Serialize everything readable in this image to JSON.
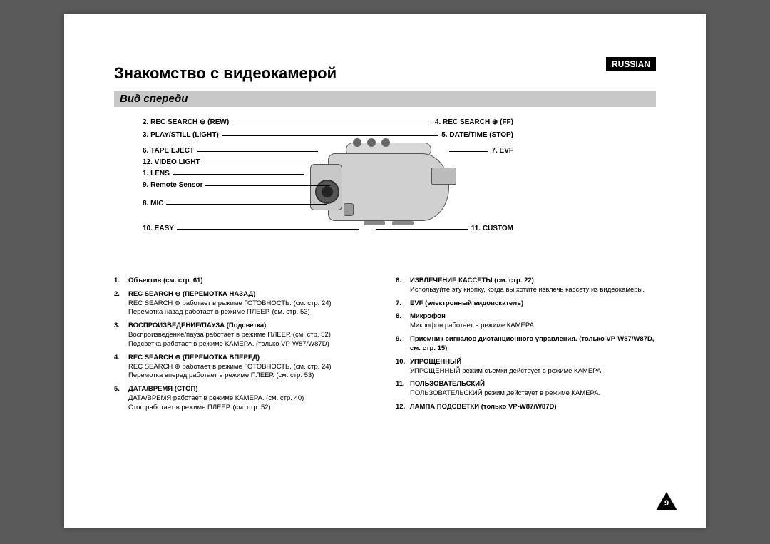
{
  "langBadge": "RUSSIAN",
  "title": "Знакомство с видеокамерой",
  "subtitle": "Вид спереди",
  "pageNumber": "9",
  "colors": {
    "pageBg": "#5a5a5a",
    "paper": "#ffffff",
    "subtitleBg": "#c8c8c8",
    "badgeBg": "#000000",
    "badgeFg": "#ffffff"
  },
  "calloutsLeft": [
    "2. REC SEARCH ⊖ (REW)",
    "3. PLAY/STILL (LIGHT)",
    "6. TAPE EJECT",
    "12. VIDEO LIGHT",
    "1. LENS",
    "9. Remote Sensor",
    "8. MIC",
    "10. EASY"
  ],
  "calloutsRight": [
    "4. REC SEARCH ⊕ (FF)",
    "5. DATE/TIME (STOP)",
    "7. EVF",
    "11. CUSTOM"
  ],
  "descLeft": [
    {
      "n": "1.",
      "head": "Объектив (см. стр. 61)",
      "body": ""
    },
    {
      "n": "2.",
      "head": "REC SEARCH ⊖ (ПЕРЕМОТКА НАЗАД)",
      "body": "REC SEARCH ⊖ работает в режиме ГОТОВНОСТЬ. (см. стр. 24)\nПеремотка назад работает в режиме ПЛЕЕР. (см. стр. 53)"
    },
    {
      "n": "3.",
      "head": "ВОСПРОИЗВЕДЕНИЕ/ПАУЗА (Подсветка)",
      "body": "Воспроизведение/пауза работает в режиме ПЛЕЕР. (см. стр. 52)\nПодсветка работает в режиме КАМЕРА. (только VP-W87/W87D)"
    },
    {
      "n": "4.",
      "head": "REC SEARCH ⊕ (ПЕРЕМОТКА ВПЕРЕД)",
      "body": "REC SEARCH ⊕ работает в режиме ГОТОВНОСТЬ. (см. стр. 24)\nПеремотка вперед работает в режиме ПЛЕЕР. (см. стр. 53)"
    },
    {
      "n": "5.",
      "head": "ДАТА/ВРЕМЯ (СТОП)",
      "body": "ДАТА/ВРЕМЯ работает в режиме КАМЕРА. (см. стр. 40)\nСтоп работает в режиме ПЛЕЕР. (см. стр. 52)"
    }
  ],
  "descRight": [
    {
      "n": "6.",
      "head": "ИЗВЛЕЧЕНИЕ КАССЕТЫ (см. стр. 22)",
      "body": "Используйте эту кнопку, когда вы хотите извлечь кассету из видеокамеры."
    },
    {
      "n": "7.",
      "head": "EVF (электронный видоискатель)",
      "body": ""
    },
    {
      "n": "8.",
      "head": "Микрофон",
      "body": "Микрофон работает в режиме КАМЕРА."
    },
    {
      "n": "9.",
      "head": "Приемник сигналов дистанционного управления. (только VP-W87/W87D, см. стр. 15)",
      "body": ""
    },
    {
      "n": "10.",
      "head": "УПРОЩЕННЫЙ",
      "body": "УПРОЩЕННЫЙ режим съемки действует в режиме КАМЕРА."
    },
    {
      "n": "11.",
      "head": "ПОЛЬЗОВАТЕЛЬСКИЙ",
      "body": "ПОЛЬЗОВАТЕЛЬСКИЙ режим действует в режиме КАМЕРА."
    },
    {
      "n": "12.",
      "head": "ЛАМПА ПОДСВЕТКИ (только VP-W87/W87D)",
      "body": ""
    }
  ]
}
